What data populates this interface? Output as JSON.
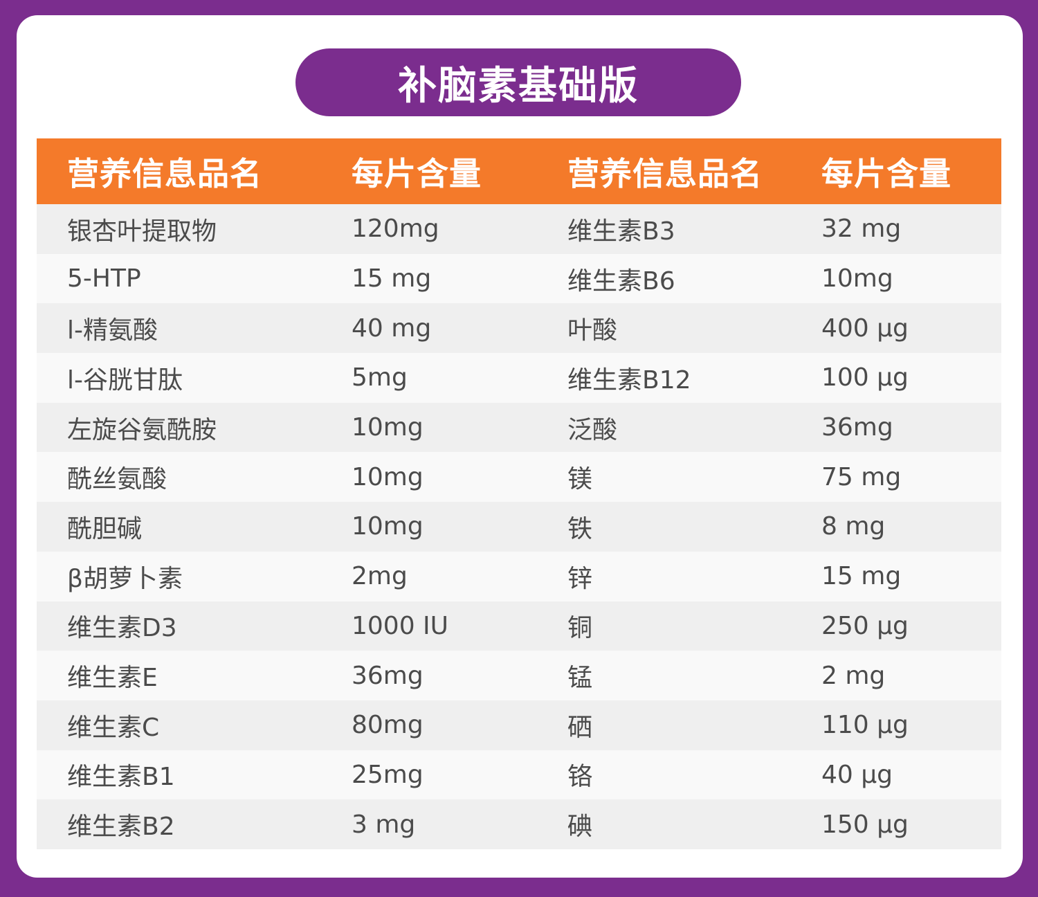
{
  "title": "补脑素基础版",
  "table": {
    "headers": [
      "营养信息品名",
      "每片含量",
      "营养信息品名",
      "每片含量"
    ],
    "rows": [
      [
        "银杏叶提取物",
        "120mg",
        "维生素B3",
        "32 mg"
      ],
      [
        "5-HTP",
        "15 mg",
        "维生素B6",
        "10mg"
      ],
      [
        "l-精氨酸",
        "40 mg",
        "叶酸",
        "400 µg"
      ],
      [
        "l-谷胱甘肽",
        "5mg",
        "维生素B12",
        "100 µg"
      ],
      [
        "左旋谷氨酰胺",
        "10mg",
        "泛酸",
        "36mg"
      ],
      [
        "酰丝氨酸",
        "10mg",
        "镁",
        "75 mg"
      ],
      [
        "酰胆碱",
        "10mg",
        "铁",
        "8 mg"
      ],
      [
        "β胡萝卜素",
        "2mg",
        "锌",
        "15 mg"
      ],
      [
        "维生素D3",
        "1000 IU",
        "铜",
        "250 µg"
      ],
      [
        "维生素E",
        "36mg",
        "锰",
        "2 mg"
      ],
      [
        "维生素C",
        "80mg",
        "硒",
        "110 µg"
      ],
      [
        "维生素B1",
        "25mg",
        "铬",
        "40 µg"
      ],
      [
        "维生素B2",
        "3 mg",
        "碘",
        "150 µg"
      ]
    ]
  }
}
